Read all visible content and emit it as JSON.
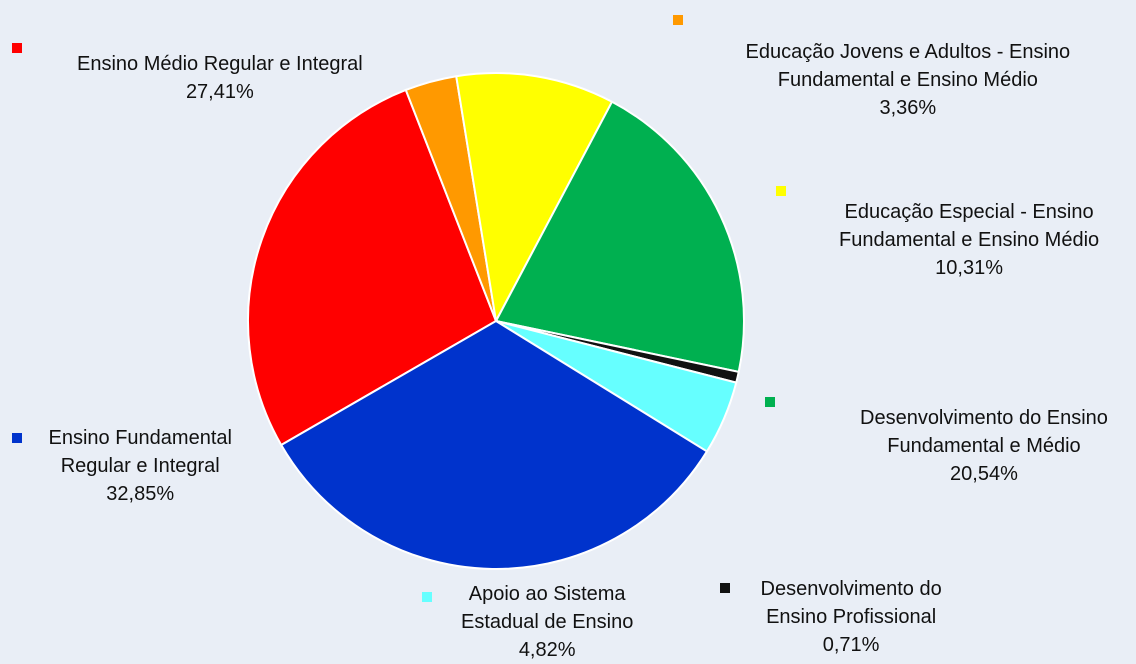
{
  "chart_data": {
    "type": "pie",
    "title": "",
    "slices": [
      {
        "label_lines": [
          "Ensino Médio Regular e Integral"
        ],
        "value": 27.41,
        "value_text": "27,41%",
        "color": "#ff0000"
      },
      {
        "label_lines": [
          "Educação Jovens e Adultos - Ensino",
          "Fundamental e Ensino Médio"
        ],
        "value": 3.36,
        "value_text": "3,36%",
        "color": "#ff9900"
      },
      {
        "label_lines": [
          "Educação Especial - Ensino",
          "Fundamental e Ensino Médio"
        ],
        "value": 10.31,
        "value_text": "10,31%",
        "color": "#ffff00"
      },
      {
        "label_lines": [
          "Desenvolvimento do Ensino",
          "Fundamental e Médio"
        ],
        "value": 20.54,
        "value_text": "20,54%",
        "color": "#00b050"
      },
      {
        "label_lines": [
          "Desenvolvimento do",
          "Ensino Profissional"
        ],
        "value": 0.71,
        "value_text": "0,71%",
        "color": "#111111"
      },
      {
        "label_lines": [
          "Apoio ao Sistema",
          "Estadual de Ensino"
        ],
        "value": 4.82,
        "value_text": "4,82%",
        "color": "#66ffff"
      },
      {
        "label_lines": [
          "Ensino Fundamental",
          "Regular e Integral"
        ],
        "value": 32.85,
        "value_text": "32,85%",
        "color": "#0033cc"
      }
    ],
    "legend_placement": "around-pie"
  }
}
